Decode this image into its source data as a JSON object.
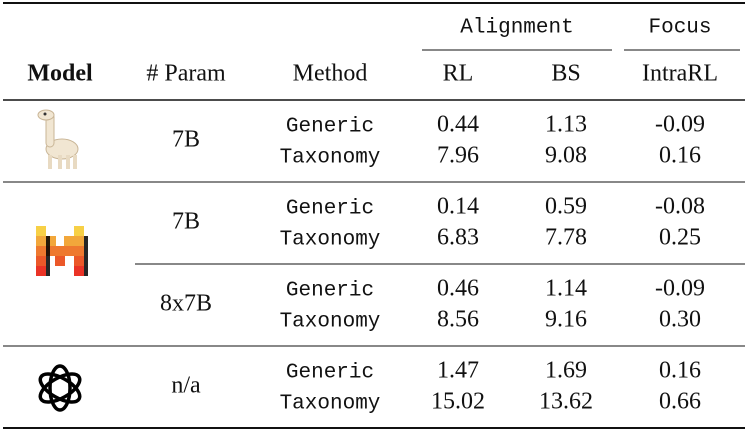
{
  "header_groups": [
    "Alignment",
    "Focus"
  ],
  "columns": [
    "Model",
    "# Param",
    "Method",
    "RL",
    "BS",
    "IntraRL"
  ],
  "groups": [
    {
      "subgroups": [
        {
          "param": "7B",
          "rows": [
            [
              "Generic",
              "0.44",
              "1.13",
              "-0.09"
            ],
            [
              "Taxonomy",
              "7.96",
              "9.08",
              "0.16"
            ]
          ]
        }
      ]
    },
    {
      "subgroups": [
        {
          "param": "7B",
          "rows": [
            [
              "Generic",
              "0.14",
              "0.59",
              "-0.08"
            ],
            [
              "Taxonomy",
              "6.83",
              "7.78",
              "0.25"
            ]
          ]
        },
        {
          "param": "8x7B",
          "rows": [
            [
              "Generic",
              "0.46",
              "1.14",
              "-0.09"
            ],
            [
              "Taxonomy",
              "8.56",
              "9.16",
              "0.30"
            ]
          ]
        }
      ]
    },
    {
      "subgroups": [
        {
          "param": "n/a",
          "rows": [
            [
              "Generic",
              "1.47",
              "1.69",
              "0.16"
            ],
            [
              "Taxonomy",
              "15.02",
              "13.62",
              "0.66"
            ]
          ]
        }
      ]
    }
  ]
}
